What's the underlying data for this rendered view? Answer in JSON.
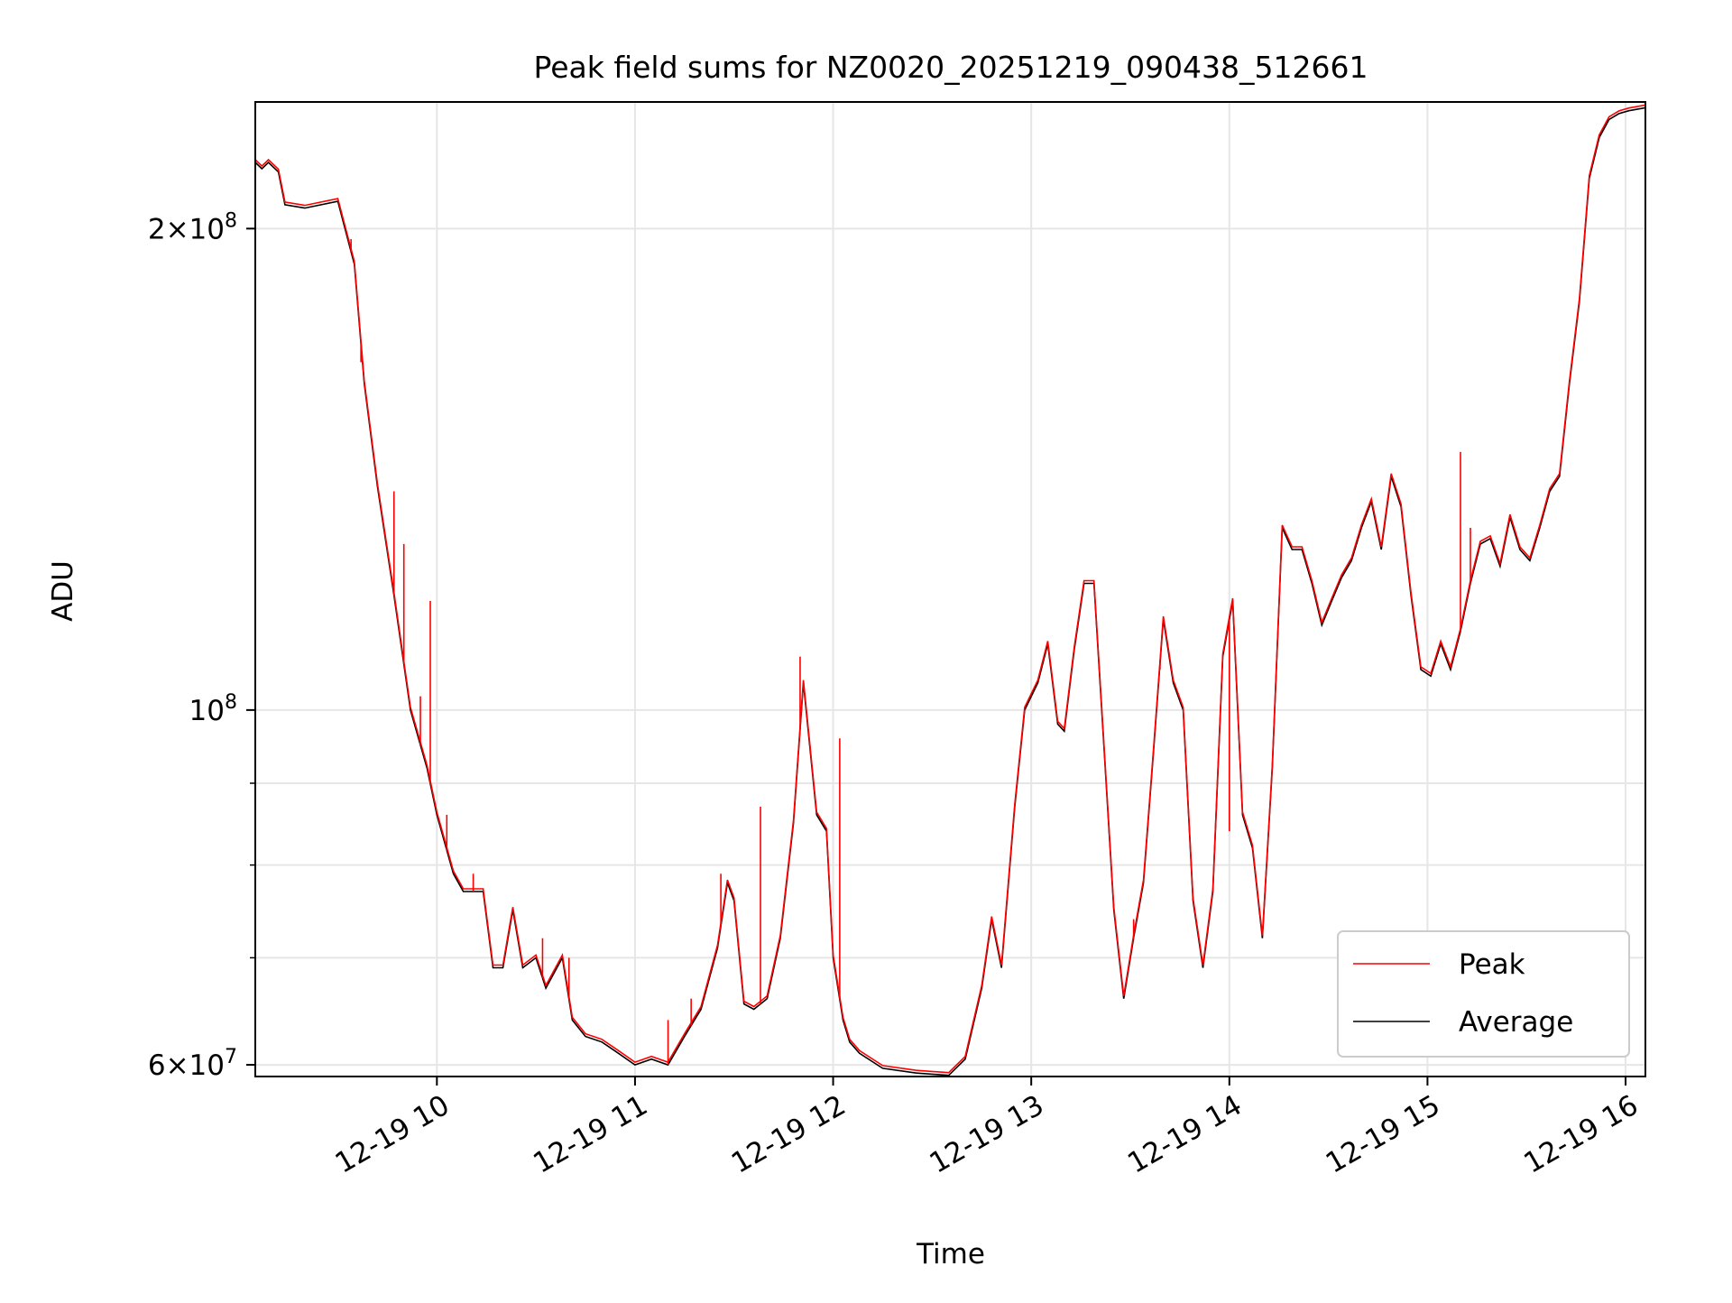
{
  "chart_data": {
    "type": "line",
    "title": "Peak field sums for NZ0020_20251219_090438_512661",
    "xlabel": "Time",
    "ylabel": "ADU",
    "yscale": "log",
    "ylim": [
      59000000,
      240000000
    ],
    "xlim": [
      "12-19 09:05",
      "12-19 16:06"
    ],
    "grid": true,
    "legend_position": "lower-right",
    "x_ticks": [
      {
        "value": "12-19 10:00",
        "label": "12-19 10"
      },
      {
        "value": "12-19 11:00",
        "label": "12-19 11"
      },
      {
        "value": "12-19 12:00",
        "label": "12-19 12"
      },
      {
        "value": "12-19 13:00",
        "label": "12-19 13"
      },
      {
        "value": "12-19 14:00",
        "label": "12-19 14"
      },
      {
        "value": "12-19 15:00",
        "label": "12-19 15"
      },
      {
        "value": "12-19 16:00",
        "label": "12-19 16"
      }
    ],
    "y_ticks": [
      {
        "value": 60000000,
        "mant": "6",
        "exp": "7"
      },
      {
        "value": 100000000,
        "mant": "",
        "exp": "8"
      },
      {
        "value": 200000000,
        "mant": "2",
        "exp": "8"
      }
    ],
    "y_minor_ticks": [
      70000000,
      80000000,
      90000000
    ],
    "series": [
      {
        "name": "Average",
        "color": "#000000",
        "x": [
          "12-19 09:05",
          "12-19 09:07",
          "12-19 09:09",
          "12-19 09:12",
          "12-19 09:14",
          "12-19 09:20",
          "12-19 09:30",
          "12-19 09:35",
          "12-19 09:38",
          "12-19 09:42",
          "12-19 09:47",
          "12-19 09:52",
          "12-19 09:57",
          "12-19 10:00",
          "12-19 10:05",
          "12-19 10:08",
          "12-19 10:12",
          "12-19 10:14",
          "12-19 10:17",
          "12-19 10:20",
          "12-19 10:23",
          "12-19 10:26",
          "12-19 10:30",
          "12-19 10:33",
          "12-19 10:38",
          "12-19 10:41",
          "12-19 10:45",
          "12-19 10:50",
          "12-19 10:55",
          "12-19 11:00",
          "12-19 11:05",
          "12-19 11:10",
          "12-19 11:15",
          "12-19 11:20",
          "12-19 11:25",
          "12-19 11:28",
          "12-19 11:30",
          "12-19 11:33",
          "12-19 11:36",
          "12-19 11:40",
          "12-19 11:44",
          "12-19 11:48",
          "12-19 11:51",
          "12-19 11:55",
          "12-19 11:58",
          "12-19 12:00",
          "12-19 12:03",
          "12-19 12:05",
          "12-19 12:08",
          "12-19 12:15",
          "12-19 12:25",
          "12-19 12:30",
          "12-19 12:35",
          "12-19 12:40",
          "12-19 12:45",
          "12-19 12:48",
          "12-19 12:51",
          "12-19 12:55",
          "12-19 12:58",
          "12-19 13:02",
          "12-19 13:05",
          "12-19 13:08",
          "12-19 13:10",
          "12-19 13:13",
          "12-19 13:16",
          "12-19 13:19",
          "12-19 13:22",
          "12-19 13:25",
          "12-19 13:28",
          "12-19 13:31",
          "12-19 13:34",
          "12-19 13:37",
          "12-19 13:40",
          "12-19 13:43",
          "12-19 13:46",
          "12-19 13:49",
          "12-19 13:52",
          "12-19 13:55",
          "12-19 13:58",
          "12-19 14:01",
          "12-19 14:04",
          "12-19 14:07",
          "12-19 14:10",
          "12-19 14:13",
          "12-19 14:16",
          "12-19 14:19",
          "12-19 14:22",
          "12-19 14:25",
          "12-19 14:28",
          "12-19 14:31",
          "12-19 14:34",
          "12-19 14:37",
          "12-19 14:40",
          "12-19 14:43",
          "12-19 14:46",
          "12-19 14:49",
          "12-19 14:52",
          "12-19 14:55",
          "12-19 14:58",
          "12-19 15:01",
          "12-19 15:04",
          "12-19 15:07",
          "12-19 15:10",
          "12-19 15:13",
          "12-19 15:16",
          "12-19 15:19",
          "12-19 15:22",
          "12-19 15:25",
          "12-19 15:28",
          "12-19 15:31",
          "12-19 15:34",
          "12-19 15:37",
          "12-19 15:40",
          "12-19 15:43",
          "12-19 15:46",
          "12-19 15:49",
          "12-19 15:52",
          "12-19 15:55",
          "12-19 15:58",
          "12-19 16:01",
          "12-19 16:06"
        ],
        "y": [
          220000000,
          218000000,
          220000000,
          217000000,
          207000000,
          206000000,
          208000000,
          190000000,
          160000000,
          138000000,
          118000000,
          100000000,
          92000000,
          86000000,
          79000000,
          77000000,
          77000000,
          77000000,
          69000000,
          69000000,
          75000000,
          69000000,
          70000000,
          67000000,
          70000000,
          64000000,
          62500000,
          62000000,
          61000000,
          60000000,
          60500000,
          60000000,
          62500000,
          65000000,
          71000000,
          78000000,
          76000000,
          65500000,
          65000000,
          66000000,
          72000000,
          85000000,
          104000000,
          86000000,
          84000000,
          70000000,
          64000000,
          62000000,
          61000000,
          59700000,
          59300000,
          59200000,
          59100000,
          60500000,
          67000000,
          74000000,
          69000000,
          87000000,
          100000000,
          104000000,
          110000000,
          98000000,
          97000000,
          109000000,
          120000000,
          120000000,
          95000000,
          75000000,
          66000000,
          72000000,
          78000000,
          94000000,
          114000000,
          104000000,
          100000000,
          76000000,
          69000000,
          77000000,
          108000000,
          117000000,
          86000000,
          82000000,
          72000000,
          92000000,
          130000000,
          126000000,
          126000000,
          120000000,
          113000000,
          117000000,
          121000000,
          124000000,
          130000000,
          135000000,
          126000000,
          140000000,
          134000000,
          118000000,
          106000000,
          105000000,
          110000000,
          106000000,
          112000000,
          120000000,
          127000000,
          128000000,
          123000000,
          132000000,
          126000000,
          124000000,
          130000000,
          137000000,
          140000000,
          160000000,
          180000000,
          215000000,
          228000000,
          234000000,
          236000000,
          237000000,
          238000000
        ]
      },
      {
        "name": "Peak",
        "color": "#ff0000",
        "spikes": [
          {
            "x": "12-19 09:34",
            "y": 197000000
          },
          {
            "x": "12-19 09:37",
            "y": 165000000
          },
          {
            "x": "12-19 09:47",
            "y": 137000000
          },
          {
            "x": "12-19 09:50",
            "y": 127000000
          },
          {
            "x": "12-19 09:55",
            "y": 102000000
          },
          {
            "x": "12-19 09:58",
            "y": 117000000
          },
          {
            "x": "12-19 10:03",
            "y": 86000000
          },
          {
            "x": "12-19 10:11",
            "y": 79000000
          },
          {
            "x": "12-19 10:32",
            "y": 72000000
          },
          {
            "x": "12-19 10:40",
            "y": 70000000
          },
          {
            "x": "12-19 11:10",
            "y": 64000000
          },
          {
            "x": "12-19 11:17",
            "y": 66000000
          },
          {
            "x": "12-19 11:26",
            "y": 79000000
          },
          {
            "x": "12-19 11:38",
            "y": 87000000
          },
          {
            "x": "12-19 11:50",
            "y": 108000000
          },
          {
            "x": "12-19 11:53",
            "y": 95000000
          },
          {
            "x": "12-19 12:02",
            "y": 96000000
          },
          {
            "x": "12-19 13:31",
            "y": 74000000
          },
          {
            "x": "12-19 13:39",
            "y": 106000000
          },
          {
            "x": "12-19 14:00",
            "y": 84000000
          },
          {
            "x": "12-19 15:10",
            "y": 145000000
          },
          {
            "x": "12-19 15:13",
            "y": 130000000
          }
        ]
      }
    ]
  }
}
